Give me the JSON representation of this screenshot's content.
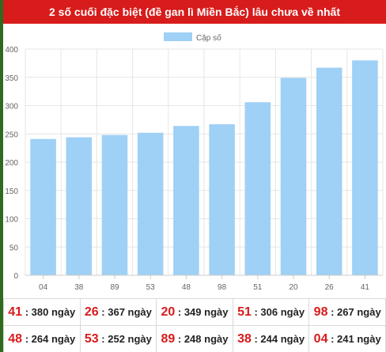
{
  "title": "2 số cuối đặc biệt (đề gan lì Miền Bắc) lâu chưa về nhất",
  "colors": {
    "title_bg": "#d81b1b",
    "bar": "#9fd0f5",
    "number": "#d81b1b",
    "frame": "#2f6b1e"
  },
  "chart_data": {
    "type": "bar",
    "categories": [
      "04",
      "38",
      "89",
      "53",
      "48",
      "98",
      "51",
      "20",
      "26",
      "41"
    ],
    "series": [
      {
        "name": "Cặp số",
        "values": [
          241,
          244,
          248,
          252,
          264,
          267,
          306,
          349,
          367,
          380
        ]
      }
    ],
    "yticks": [
      "0",
      "50",
      "100",
      "150",
      "200",
      "250",
      "300",
      "350",
      "400"
    ],
    "ylim": [
      0,
      400
    ],
    "grid": true,
    "legend": "top-center"
  },
  "stats": [
    [
      {
        "num": "41",
        "sep": " : ",
        "days": "380 ngày"
      },
      {
        "num": "26",
        "sep": " : ",
        "days": "367 ngày"
      },
      {
        "num": "20",
        "sep": " : ",
        "days": "349 ngày"
      },
      {
        "num": "51",
        "sep": " : ",
        "days": "306 ngày"
      },
      {
        "num": "98",
        "sep": " : ",
        "days": "267 ngày"
      }
    ],
    [
      {
        "num": "48",
        "sep": " : ",
        "days": "264 ngày"
      },
      {
        "num": "53",
        "sep": " : ",
        "days": "252 ngày"
      },
      {
        "num": "89",
        "sep": " : ",
        "days": "248 ngày"
      },
      {
        "num": "38",
        "sep": " : ",
        "days": "244 ngày"
      },
      {
        "num": "04",
        "sep": " : ",
        "days": "241 ngày"
      }
    ]
  ]
}
